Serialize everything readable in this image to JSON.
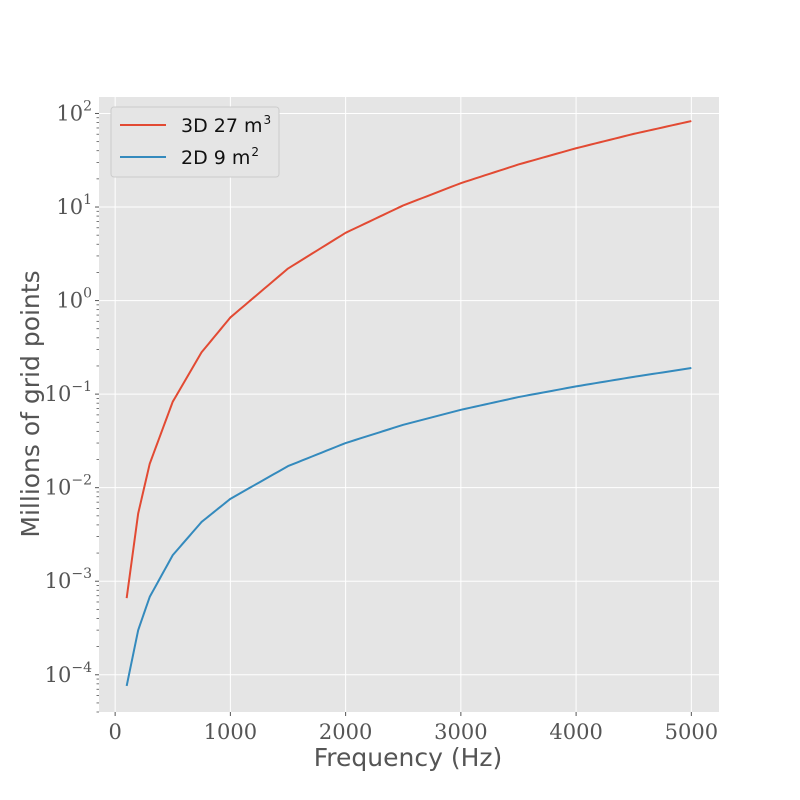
{
  "chart_data": {
    "type": "line",
    "title": "",
    "xlabel": "Frequency (Hz)",
    "ylabel": "Millions of grid points",
    "xlim": [
      -140,
      5240
    ],
    "ylim": [
      4e-05,
      150
    ],
    "yscale": "log",
    "grid": true,
    "legend_placement": "top-left",
    "xticks": [
      0,
      1000,
      2000,
      3000,
      4000,
      5000
    ],
    "yticks": [
      {
        "value": 0.0001,
        "base": "10",
        "exp": "−4"
      },
      {
        "value": 0.001,
        "base": "10",
        "exp": "−3"
      },
      {
        "value": 0.01,
        "base": "10",
        "exp": "−2"
      },
      {
        "value": 0.1,
        "base": "10",
        "exp": "−1"
      },
      {
        "value": 1,
        "base": "10",
        "exp": "0"
      },
      {
        "value": 10,
        "base": "10",
        "exp": "1"
      },
      {
        "value": 100,
        "base": "10",
        "exp": "2"
      }
    ],
    "series": [
      {
        "name": "3D 27 m",
        "name_sup": "3",
        "color": "#e24a33",
        "x": [
          100,
          200,
          300,
          500,
          750,
          1000,
          1500,
          2000,
          2500,
          3000,
          3500,
          4000,
          4500,
          5000
        ],
        "y": [
          0.00066,
          0.0053,
          0.018,
          0.083,
          0.28,
          0.66,
          2.2,
          5.3,
          10.4,
          18,
          28.5,
          42.5,
          60.5,
          83
        ]
      },
      {
        "name": "2D 9 m",
        "name_sup": "2",
        "color": "#348abd",
        "x": [
          100,
          200,
          300,
          500,
          750,
          1000,
          1500,
          2000,
          2500,
          3000,
          3500,
          4000,
          4500,
          5000
        ],
        "y": [
          7.6e-05,
          0.0003,
          0.00068,
          0.0019,
          0.0043,
          0.0076,
          0.017,
          0.03,
          0.047,
          0.068,
          0.093,
          0.121,
          0.153,
          0.19
        ]
      }
    ]
  },
  "colors": {
    "plot_background": "#e5e5e5",
    "grid": "#ffffff",
    "text": "#555555"
  }
}
